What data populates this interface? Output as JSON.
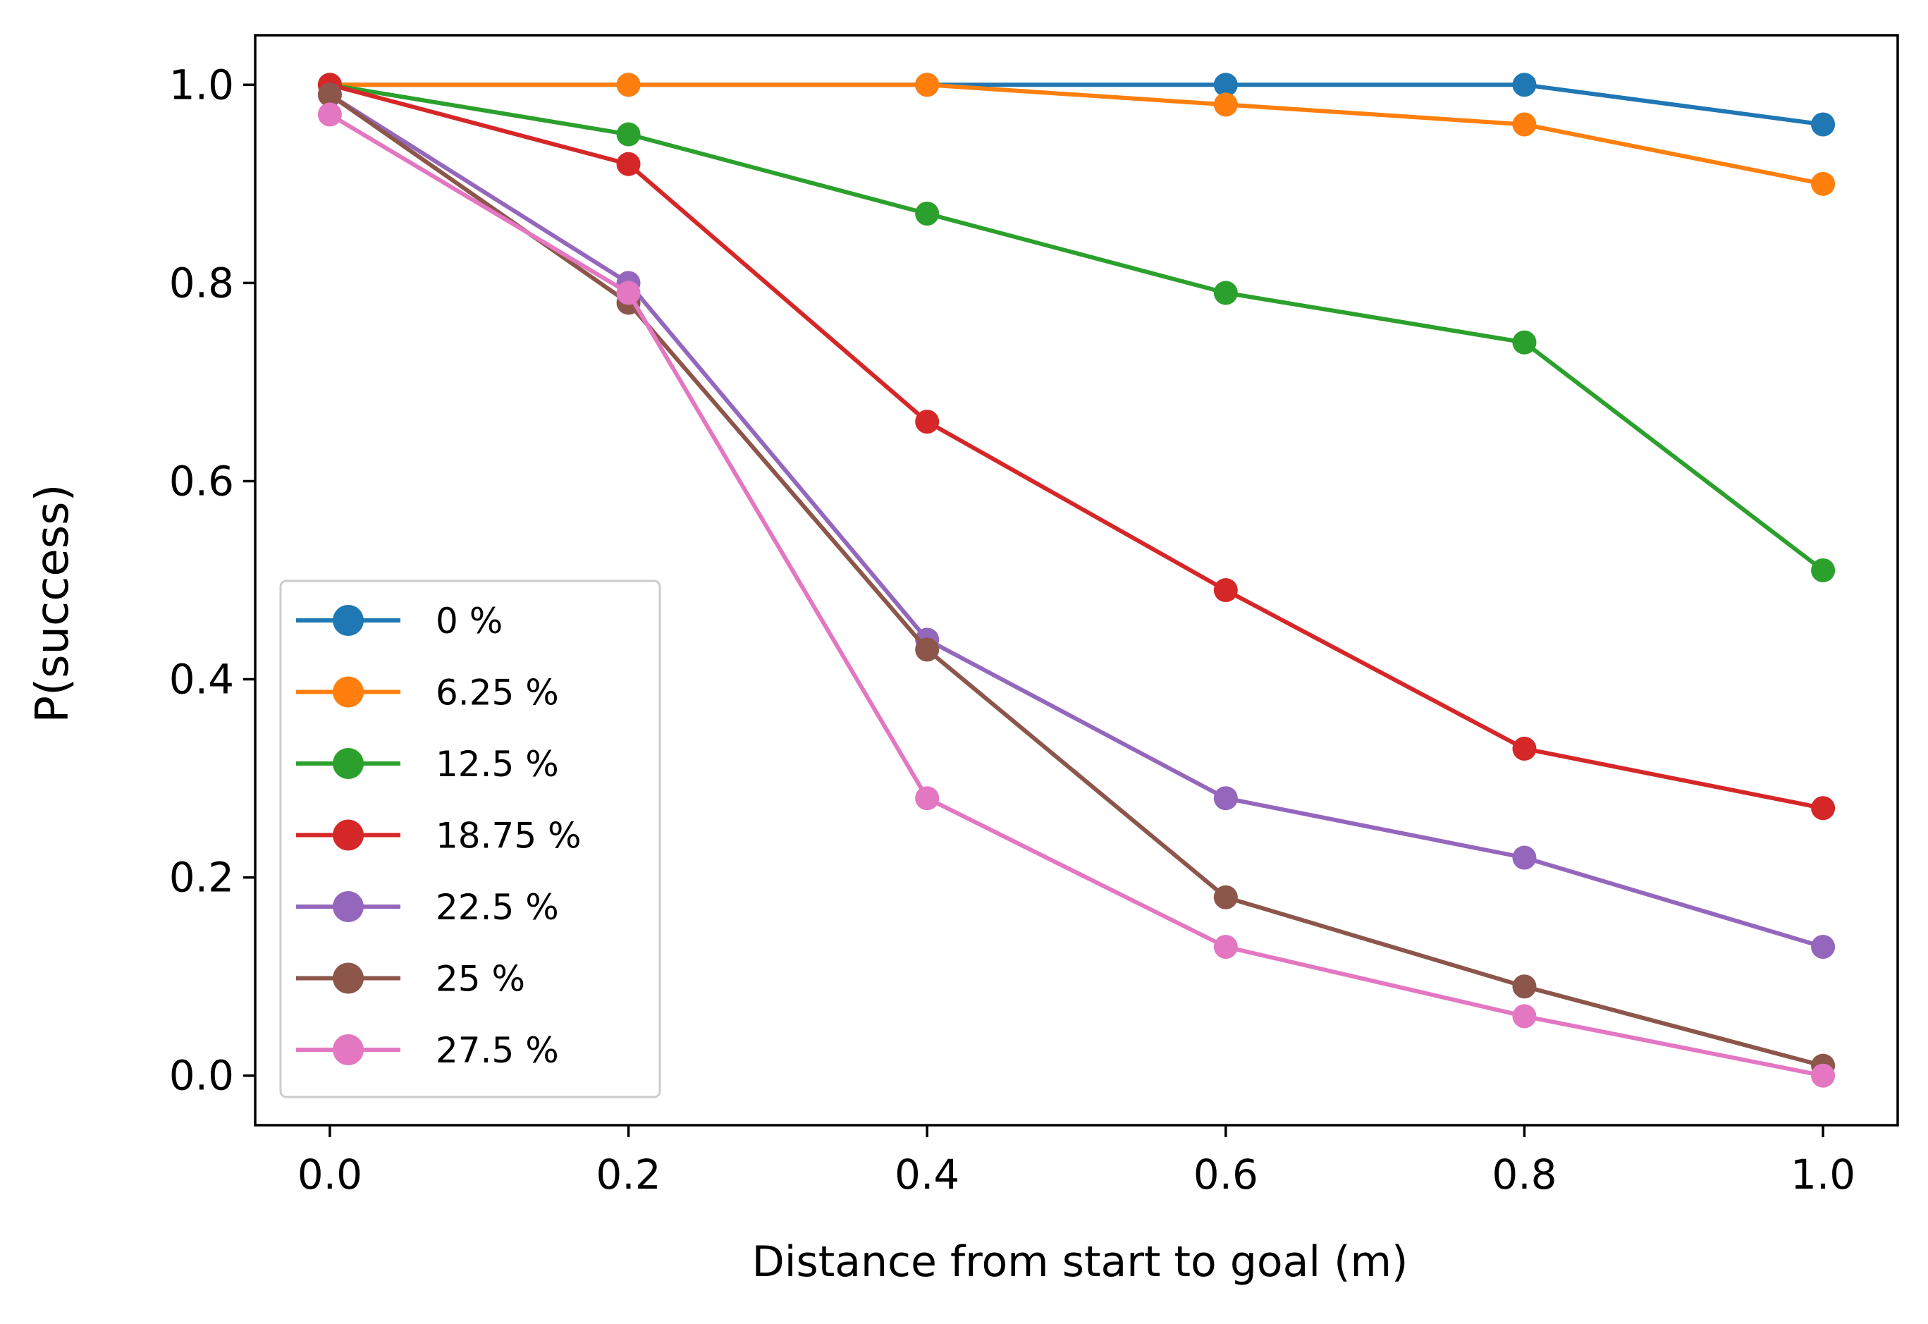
{
  "chart_data": {
    "type": "line",
    "title": "",
    "xlabel": "Distance from start to goal (m)",
    "ylabel": "P(success)",
    "x": [
      0.0,
      0.2,
      0.4,
      0.6,
      0.8,
      1.0
    ],
    "xlim": [
      -0.05,
      1.05
    ],
    "ylim": [
      -0.05,
      1.05
    ],
    "xticks": [
      "0.0",
      "0.2",
      "0.4",
      "0.6",
      "0.8",
      "1.0"
    ],
    "yticks": [
      "0.0",
      "0.2",
      "0.4",
      "0.6",
      "0.8",
      "1.0"
    ],
    "grid": false,
    "legend_position": "lower-left",
    "series": [
      {
        "name": "0 %",
        "color": "#1f77b4",
        "values": [
          1.0,
          1.0,
          1.0,
          1.0,
          1.0,
          0.96
        ]
      },
      {
        "name": "6.25 %",
        "color": "#ff7f0e",
        "values": [
          1.0,
          1.0,
          1.0,
          0.98,
          0.96,
          0.9
        ]
      },
      {
        "name": "12.5 %",
        "color": "#2ca02c",
        "values": [
          1.0,
          0.95,
          0.87,
          0.79,
          0.74,
          0.51
        ]
      },
      {
        "name": "18.75 %",
        "color": "#d62728",
        "values": [
          1.0,
          0.92,
          0.66,
          0.49,
          0.33,
          0.27
        ]
      },
      {
        "name": "22.5 %",
        "color": "#9467bd",
        "values": [
          0.99,
          0.8,
          0.44,
          0.28,
          0.22,
          0.13
        ]
      },
      {
        "name": "25 %",
        "color": "#8c564b",
        "values": [
          0.99,
          0.78,
          0.43,
          0.18,
          0.09,
          0.01
        ]
      },
      {
        "name": "27.5 %",
        "color": "#e377c2",
        "values": [
          0.97,
          0.79,
          0.28,
          0.13,
          0.06,
          0.0
        ]
      }
    ]
  }
}
